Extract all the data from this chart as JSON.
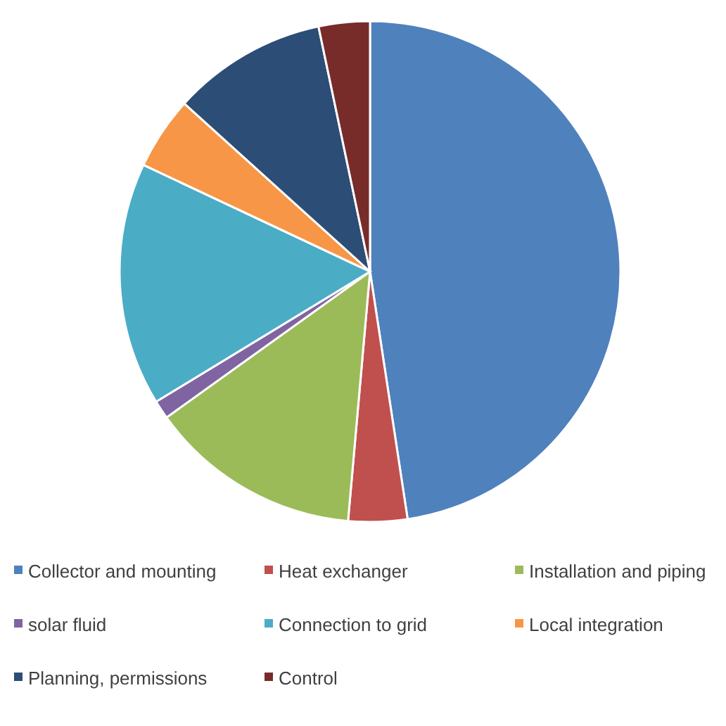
{
  "chart_data": {
    "type": "pie",
    "categories": [
      "Collector and mounting",
      "Heat exchanger",
      "Installation and piping",
      "solar fluid",
      "Connection to grid",
      "Local integration",
      "Planning, permissions",
      "Control"
    ],
    "values": [
      47.6,
      3.8,
      13.7,
      1.2,
      15.7,
      4.7,
      10.0,
      3.3
    ],
    "colors": [
      "#4f81bd",
      "#c0504d",
      "#9bbb59",
      "#8064a2",
      "#4bacc6",
      "#f79646",
      "#2c4d75",
      "#772c2a"
    ],
    "legend": "bottom"
  }
}
